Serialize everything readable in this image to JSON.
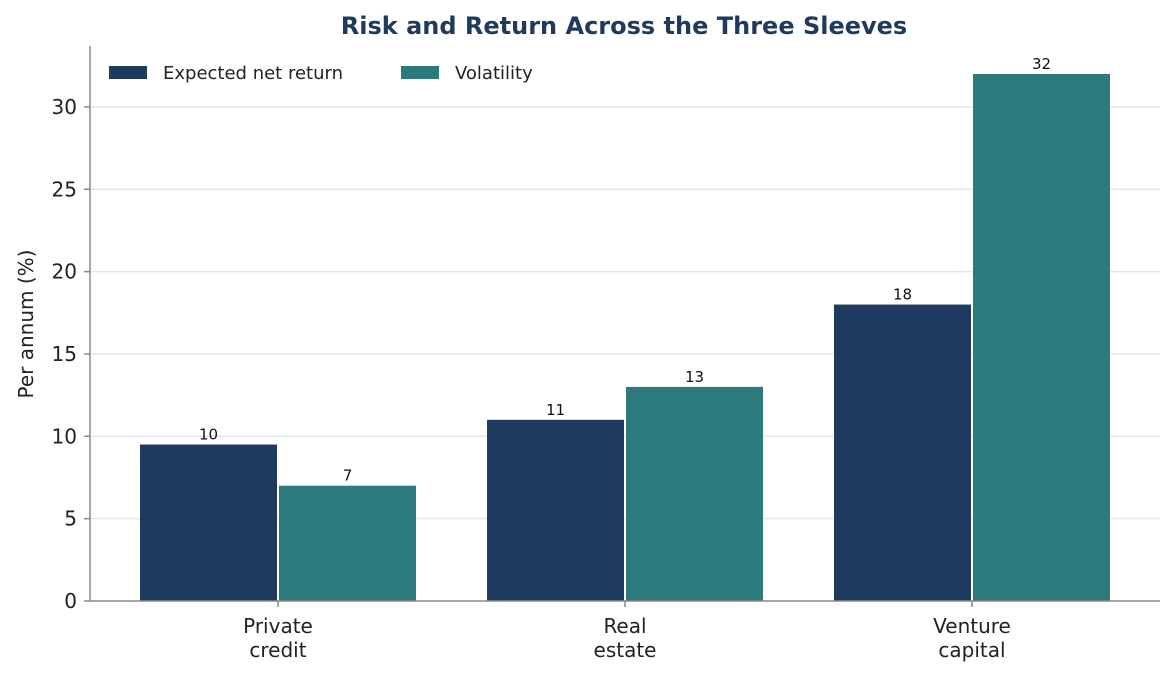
{
  "chart_data": {
    "type": "bar",
    "title": "Risk and Return Across the Three Sleeves",
    "xlabel": "",
    "ylabel": "Per annum (%)",
    "categories": [
      [
        "Private",
        "credit"
      ],
      [
        "Real",
        "estate"
      ],
      [
        "Venture",
        "capital"
      ]
    ],
    "series": [
      {
        "name": "Expected net return",
        "values": [
          9.5,
          11,
          18
        ],
        "labels": [
          "10",
          "11",
          "18"
        ],
        "color": "#1f3a5f"
      },
      {
        "name": "Volatility",
        "values": [
          7,
          13,
          32
        ],
        "labels": [
          "7",
          "13",
          "32"
        ],
        "color": "#2d7a7c"
      }
    ],
    "ylim": [
      0,
      33.7
    ],
    "yticks": [
      0,
      5,
      10,
      15,
      20,
      25,
      30
    ],
    "grid": true,
    "legend_position": "top-left",
    "title_color": "#1f3a5f",
    "grid_color": "#e3e7ee",
    "axis_color": "#888888"
  }
}
